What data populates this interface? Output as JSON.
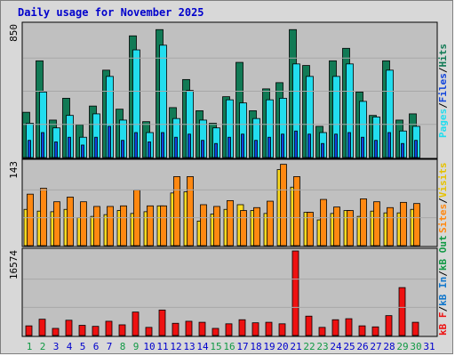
{
  "page": {
    "title": "Daily usage for November 2025"
  },
  "labels": {
    "pages": "Pages",
    "files": "Files",
    "hits": "Hits",
    "sites": "Sites",
    "visits": "Visits",
    "kb_f": "kB F",
    "kb_in": "kB In",
    "kb_out": "kB Out",
    "sep": "/"
  },
  "colors": {
    "hits": "#117a55",
    "files": "#22ddee",
    "pages": "#1144dd",
    "visits": "#ffdd22",
    "sites": "#ff8811",
    "kbytes": "#ee1111",
    "panel": "#c0c0c0",
    "frame": "#d8d8d8",
    "title": "#0000cc",
    "day_weekday": "#0000cc",
    "day_weekend": "#119944"
  },
  "chart_data": [
    {
      "type": "bar",
      "panel": "hits-files-pages",
      "ymax_label": "850",
      "ylim": [
        0,
        850
      ],
      "categories": [
        "1",
        "2",
        "3",
        "4",
        "5",
        "6",
        "7",
        "8",
        "9",
        "10",
        "11",
        "12",
        "13",
        "14",
        "15",
        "16",
        "17",
        "18",
        "19",
        "20",
        "21",
        "22",
        "23",
        "24",
        "25",
        "26",
        "27",
        "28",
        "29",
        "30",
        "31"
      ],
      "series": [
        {
          "name": "Hits",
          "values": [
            290,
            620,
            240,
            380,
            210,
            330,
            560,
            310,
            780,
            230,
            820,
            320,
            500,
            300,
            220,
            390,
            610,
            300,
            440,
            480,
            820,
            590,
            200,
            620,
            700,
            420,
            270,
            620,
            240,
            280,
            0
          ]
        },
        {
          "name": "Files",
          "values": [
            220,
            420,
            190,
            270,
            130,
            280,
            520,
            240,
            690,
            160,
            720,
            250,
            430,
            240,
            190,
            370,
            350,
            250,
            370,
            380,
            600,
            520,
            160,
            520,
            600,
            360,
            260,
            560,
            170,
            200,
            0
          ]
        },
        {
          "name": "Pages",
          "values": [
            110,
            160,
            100,
            130,
            80,
            130,
            200,
            110,
            160,
            100,
            160,
            130,
            150,
            110,
            90,
            130,
            150,
            110,
            130,
            150,
            170,
            150,
            90,
            150,
            160,
            130,
            110,
            160,
            90,
            110,
            0
          ]
        }
      ]
    },
    {
      "type": "bar",
      "panel": "visits-sites",
      "ymax_label": "143",
      "ylim": [
        0,
        143
      ],
      "categories": [
        "1",
        "2",
        "3",
        "4",
        "5",
        "6",
        "7",
        "8",
        "9",
        "10",
        "11",
        "12",
        "13",
        "14",
        "15",
        "16",
        "17",
        "18",
        "19",
        "20",
        "21",
        "22",
        "23",
        "24",
        "25",
        "26",
        "27",
        "28",
        "29",
        "30",
        "31"
      ],
      "series": [
        {
          "name": "Visits",
          "values": [
            62,
            59,
            58,
            62,
            48,
            50,
            53,
            60,
            55,
            58,
            68,
            90,
            92,
            42,
            54,
            62,
            70,
            60,
            55,
            130,
            100,
            57,
            44,
            55,
            60,
            50,
            59,
            56,
            56,
            62,
            0
          ]
        },
        {
          "name": "Sites",
          "values": [
            88,
            98,
            75,
            83,
            75,
            67,
            67,
            68,
            95,
            68,
            68,
            118,
            118,
            70,
            67,
            77,
            60,
            65,
            76,
            139,
            118,
            57,
            79,
            66,
            60,
            80,
            75,
            65,
            74,
            72,
            0
          ]
        }
      ]
    },
    {
      "type": "bar",
      "panel": "kbytes",
      "ymax_label": "16574",
      "ylim": [
        0,
        16574
      ],
      "categories": [
        "1",
        "2",
        "3",
        "4",
        "5",
        "6",
        "7",
        "8",
        "9",
        "10",
        "11",
        "12",
        "13",
        "14",
        "15",
        "16",
        "17",
        "18",
        "19",
        "20",
        "21",
        "22",
        "23",
        "24",
        "25",
        "26",
        "27",
        "28",
        "29",
        "30",
        "31"
      ],
      "series": [
        {
          "name": "kB F",
          "values": [
            1900,
            3200,
            1400,
            3000,
            2000,
            1800,
            2800,
            2100,
            4600,
            1600,
            5000,
            2400,
            2800,
            2600,
            1400,
            2300,
            3100,
            2500,
            2600,
            2300,
            16574,
            3800,
            1600,
            3100,
            3300,
            1900,
            1700,
            3900,
            9400,
            2600,
            0
          ]
        }
      ]
    }
  ],
  "day_labels": [
    "1",
    "2",
    "3",
    "4",
    "5",
    "6",
    "7",
    "8",
    "9",
    "10",
    "11",
    "12",
    "13",
    "14",
    "15",
    "16",
    "17",
    "18",
    "19",
    "20",
    "21",
    "22",
    "23",
    "24",
    "25",
    "26",
    "27",
    "28",
    "29",
    "30",
    "31"
  ],
  "weekend_days": [
    1,
    2,
    8,
    9,
    15,
    16,
    22,
    23,
    29,
    30
  ]
}
